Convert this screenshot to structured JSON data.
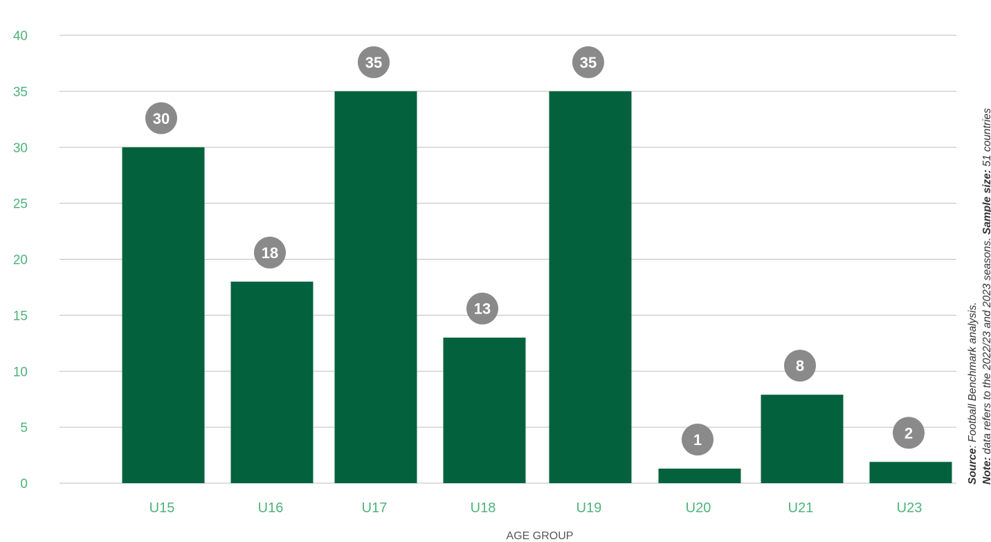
{
  "chart_data": {
    "type": "bar",
    "categories": [
      "U15",
      "U16",
      "U17",
      "U18",
      "U19",
      "U20",
      "U21",
      "U23"
    ],
    "values": [
      30,
      18,
      35,
      13,
      35,
      1,
      8,
      2
    ],
    "bar_heights": [
      30,
      18,
      35,
      13,
      35,
      1.3,
      7.9,
      1.9
    ],
    "xlabel": "AGE GROUP",
    "ylabel": "",
    "ylim": [
      0,
      40
    ],
    "yticks": [
      0,
      5,
      10,
      15,
      20,
      25,
      30,
      35,
      40
    ],
    "grid": true,
    "colors": {
      "bar": "#03623d",
      "label_bubble": "#8a8a8a",
      "axis_text": "#4db37a",
      "grid": "#bdbdbd"
    }
  },
  "notes": {
    "source_label": "Source",
    "source_text": ": Football Benchmark analysis.",
    "note_label": "Note:",
    "note_text": " data refers to the 2022/23 and 2023 seasons. ",
    "sample_label": "Sample size:",
    "sample_text": " 51 countries"
  }
}
